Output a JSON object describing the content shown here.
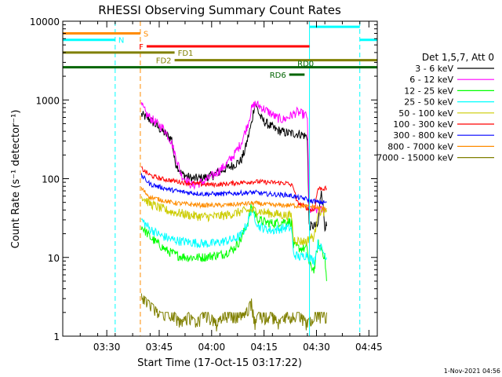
{
  "chart_data": {
    "type": "line",
    "title": "RHESSI Observing Summary Count Rates",
    "xlabel": "Start Time (17-Oct-15 03:17:22)",
    "ylabel": "Count Rate (s⁻¹ detector⁻¹)",
    "y_scale": "log",
    "ylim": [
      1,
      10000
    ],
    "xlim_minutes": [
      0,
      90
    ],
    "x_ticks": [
      {
        "minute": 12.6,
        "label": "03:30"
      },
      {
        "minute": 27.6,
        "label": "03:45"
      },
      {
        "minute": 42.6,
        "label": "04:00"
      },
      {
        "minute": 57.6,
        "label": "04:15"
      },
      {
        "minute": 72.6,
        "label": "04:30"
      },
      {
        "minute": 87.6,
        "label": "04:45"
      }
    ],
    "y_ticks": [
      {
        "value": 1,
        "label": "1"
      },
      {
        "value": 10,
        "label": "10"
      },
      {
        "value": 100,
        "label": "100"
      },
      {
        "value": 1000,
        "label": "1000"
      },
      {
        "value": 10000,
        "label": "10000"
      }
    ],
    "legend_title": "Det 1,5,7, Att 0",
    "legend_position": "right",
    "series": [
      {
        "name": "3 - 6 keV",
        "color": "#000000",
        "points": [
          [
            22.5,
            650
          ],
          [
            25,
            560
          ],
          [
            28,
            420
          ],
          [
            30,
            350
          ],
          [
            31.2,
            320
          ],
          [
            32,
            170
          ],
          [
            34,
            115
          ],
          [
            37,
            100
          ],
          [
            40,
            102
          ],
          [
            43,
            110
          ],
          [
            46,
            130
          ],
          [
            49,
            150
          ],
          [
            51,
            170
          ],
          [
            52,
            220
          ],
          [
            54,
            500
          ],
          [
            55,
            950
          ],
          [
            56,
            700
          ],
          [
            57,
            560
          ],
          [
            59,
            480
          ],
          [
            61,
            420
          ],
          [
            64,
            380
          ],
          [
            68,
            370
          ],
          [
            70,
            340
          ],
          [
            70.5,
            25
          ],
          [
            72,
            25
          ],
          [
            73,
            25
          ],
          [
            74,
            75
          ],
          [
            75,
            25
          ],
          [
            75.5,
            25
          ]
        ]
      },
      {
        "name": "6 - 12 keV",
        "color": "#ff00ff",
        "points": [
          [
            22.5,
            860
          ],
          [
            24,
            650
          ],
          [
            27,
            500
          ],
          [
            29,
            430
          ],
          [
            31,
            300
          ],
          [
            34,
            110
          ],
          [
            37,
            82
          ],
          [
            40,
            90
          ],
          [
            43,
            110
          ],
          [
            46,
            140
          ],
          [
            49,
            200
          ],
          [
            51,
            280
          ],
          [
            53,
            500
          ],
          [
            54,
            760
          ],
          [
            55,
            900
          ],
          [
            57,
            800
          ],
          [
            59,
            700
          ],
          [
            61,
            600
          ],
          [
            63,
            560
          ],
          [
            65,
            620
          ],
          [
            67,
            700
          ],
          [
            69,
            650
          ],
          [
            70,
            620
          ],
          [
            70.5,
            40
          ],
          [
            72,
            40
          ],
          [
            74,
            40
          ],
          [
            75.5,
            40
          ]
        ]
      },
      {
        "name": "12 - 25 keV",
        "color": "#00ff00",
        "points": [
          [
            22.5,
            25
          ],
          [
            25,
            18
          ],
          [
            28,
            14
          ],
          [
            30,
            12
          ],
          [
            33,
            10.5
          ],
          [
            36,
            10
          ],
          [
            40,
            10
          ],
          [
            43,
            10.5
          ],
          [
            46,
            11
          ],
          [
            49,
            13
          ],
          [
            51,
            17
          ],
          [
            53,
            28
          ],
          [
            54,
            45
          ],
          [
            55,
            36
          ],
          [
            56,
            30
          ],
          [
            58,
            28
          ],
          [
            60,
            27
          ],
          [
            62,
            28
          ],
          [
            64,
            29
          ],
          [
            65.5,
            28
          ],
          [
            66,
            14
          ],
          [
            68,
            13
          ],
          [
            70,
            13
          ],
          [
            70.5,
            8
          ],
          [
            72,
            7
          ],
          [
            73,
            15
          ],
          [
            74,
            13
          ],
          [
            75,
            10
          ],
          [
            75.5,
            5
          ]
        ]
      },
      {
        "name": "25 - 50 keV",
        "color": "#00ffff",
        "points": [
          [
            22.5,
            30
          ],
          [
            25,
            23
          ],
          [
            28,
            19
          ],
          [
            31,
            17
          ],
          [
            34,
            16
          ],
          [
            37,
            15.5
          ],
          [
            40,
            15
          ],
          [
            43,
            15
          ],
          [
            46,
            16
          ],
          [
            49,
            17
          ],
          [
            51,
            19
          ],
          [
            53,
            28
          ],
          [
            54,
            42
          ],
          [
            55,
            32
          ],
          [
            56,
            25
          ],
          [
            58,
            23
          ],
          [
            60,
            22
          ],
          [
            62,
            23
          ],
          [
            64,
            24
          ],
          [
            65.5,
            23
          ],
          [
            66,
            11
          ],
          [
            68,
            10
          ],
          [
            70,
            11
          ],
          [
            70.5,
            10
          ],
          [
            72,
            9
          ],
          [
            73,
            15
          ],
          [
            74,
            13
          ],
          [
            75,
            11
          ],
          [
            75.5,
            10
          ]
        ]
      },
      {
        "name": "50 - 100 keV",
        "color": "#cccc00",
        "points": [
          [
            22.5,
            60
          ],
          [
            25,
            48
          ],
          [
            28,
            42
          ],
          [
            31,
            38
          ],
          [
            34,
            36
          ],
          [
            37,
            34
          ],
          [
            40,
            33
          ],
          [
            43,
            33
          ],
          [
            46,
            34
          ],
          [
            49,
            36
          ],
          [
            51,
            38
          ],
          [
            54,
            40
          ],
          [
            56,
            39
          ],
          [
            58,
            37
          ],
          [
            60,
            36
          ],
          [
            62,
            35
          ],
          [
            64,
            34
          ],
          [
            65.5,
            34
          ],
          [
            66,
            17
          ],
          [
            68,
            16
          ],
          [
            70,
            16
          ],
          [
            70.5,
            18
          ],
          [
            72,
            18
          ],
          [
            73,
            40
          ],
          [
            74,
            38
          ],
          [
            75.5,
            38
          ]
        ]
      },
      {
        "name": "100 - 300 keV",
        "color": "#ff0000",
        "points": [
          [
            22.5,
            135
          ],
          [
            25,
            110
          ],
          [
            28,
            100
          ],
          [
            31,
            95
          ],
          [
            34,
            90
          ],
          [
            37,
            87
          ],
          [
            40,
            85
          ],
          [
            43,
            84
          ],
          [
            46,
            85
          ],
          [
            49,
            88
          ],
          [
            52,
            90
          ],
          [
            55,
            92
          ],
          [
            58,
            90
          ],
          [
            61,
            89
          ],
          [
            64,
            88
          ],
          [
            66,
            80
          ],
          [
            67,
            50
          ],
          [
            69,
            45
          ],
          [
            70,
            42
          ],
          [
            70.5,
            40
          ],
          [
            72,
            40
          ],
          [
            73,
            75
          ],
          [
            74,
            75
          ],
          [
            75.5,
            75
          ]
        ]
      },
      {
        "name": "300 - 800 keV",
        "color": "#0000ff",
        "points": [
          [
            22.5,
            110
          ],
          [
            25,
            85
          ],
          [
            28,
            78
          ],
          [
            31,
            72
          ],
          [
            34,
            68
          ],
          [
            37,
            66
          ],
          [
            40,
            64
          ],
          [
            43,
            64
          ],
          [
            46,
            64
          ],
          [
            49,
            65
          ],
          [
            52,
            66
          ],
          [
            55,
            67
          ],
          [
            58,
            64
          ],
          [
            61,
            63
          ],
          [
            64,
            62
          ],
          [
            66,
            60
          ],
          [
            67,
            58
          ],
          [
            69,
            56
          ],
          [
            70,
            55
          ],
          [
            70.5,
            52
          ],
          [
            72,
            52
          ],
          [
            73,
            50
          ],
          [
            74,
            50
          ],
          [
            75.5,
            50
          ]
        ]
      },
      {
        "name": "800 - 7000 keV",
        "color": "#ff8c00",
        "points": [
          [
            22.5,
            75
          ],
          [
            25,
            58
          ],
          [
            28,
            54
          ],
          [
            31,
            50
          ],
          [
            34,
            48
          ],
          [
            37,
            47
          ],
          [
            40,
            46
          ],
          [
            43,
            46
          ],
          [
            46,
            46
          ],
          [
            49,
            47
          ],
          [
            52,
            48
          ],
          [
            55,
            49
          ],
          [
            58,
            47
          ],
          [
            61,
            46
          ],
          [
            64,
            46
          ],
          [
            66,
            46
          ],
          [
            67,
            45
          ],
          [
            69,
            45
          ],
          [
            70,
            44
          ],
          [
            70.5,
            44
          ],
          [
            72,
            44
          ],
          [
            73,
            42
          ],
          [
            74,
            42
          ],
          [
            75.5,
            42
          ]
        ]
      },
      {
        "name": "7000 - 15000 keV",
        "color": "#808000",
        "points": [
          [
            22.5,
            3.5
          ],
          [
            24,
            3
          ],
          [
            26,
            2.5
          ],
          [
            28,
            2
          ],
          [
            30,
            2
          ],
          [
            32,
            2
          ],
          [
            34,
            1.6
          ],
          [
            36,
            2
          ],
          [
            38,
            1.6
          ],
          [
            40,
            2
          ],
          [
            42,
            2
          ],
          [
            44,
            1.6
          ],
          [
            46,
            2
          ],
          [
            48,
            2
          ],
          [
            50,
            2
          ],
          [
            52,
            2
          ],
          [
            54,
            3
          ],
          [
            55,
            1.6
          ],
          [
            56,
            2
          ],
          [
            58,
            2
          ],
          [
            60,
            2
          ],
          [
            62,
            1.6
          ],
          [
            64,
            2
          ],
          [
            66,
            2
          ],
          [
            68,
            2
          ],
          [
            70,
            1.6
          ],
          [
            72,
            2
          ],
          [
            74,
            2
          ],
          [
            75.5,
            2
          ]
        ]
      }
    ],
    "vertical_lines": [
      {
        "minute": 15.0,
        "color": "#00ffff",
        "style": "dashed"
      },
      {
        "minute": 22.2,
        "color": "#ff8c00",
        "style": "dashed"
      },
      {
        "minute": 70.6,
        "color": "#00ffff",
        "style": "solid"
      },
      {
        "minute": 85.0,
        "color": "#00ffff",
        "style": "dashed"
      }
    ],
    "status_bars": [
      {
        "label": "S",
        "color": "#ff8c00",
        "start": 0,
        "end": 22.2,
        "value": 7000,
        "label_side": "end"
      },
      {
        "label": "N",
        "color": "#00ffff",
        "start": 0,
        "end": 15,
        "value": 5800,
        "label_side": "end"
      },
      {
        "label": "",
        "color": "#00ffff",
        "start": 70.6,
        "end": 85,
        "value": 8500,
        "label_side": "none"
      },
      {
        "label": "",
        "color": "#00ffff",
        "start": 85,
        "end": 90,
        "value": 5800,
        "label_side": "none"
      },
      {
        "label": "F",
        "color": "#ff0000",
        "start": 24,
        "end": 70.6,
        "value": 4800,
        "label_side": "start"
      },
      {
        "label": "FD1",
        "color": "#808000",
        "start": 0,
        "end": 32,
        "value": 4000,
        "label_side": "end"
      },
      {
        "label": "FD2",
        "color": "#808000",
        "start": 32,
        "end": 90,
        "value": 3200,
        "label_side": "start"
      },
      {
        "label": "RD0",
        "color": "#006400",
        "start": 0,
        "end": 90,
        "value": 2600,
        "label_side": "above-right"
      },
      {
        "label": "RD6",
        "color": "#006400",
        "start": 64.8,
        "end": 69.2,
        "value": 2100,
        "label_side": "start"
      }
    ],
    "footer": "1-Nov-2021 04:56"
  }
}
